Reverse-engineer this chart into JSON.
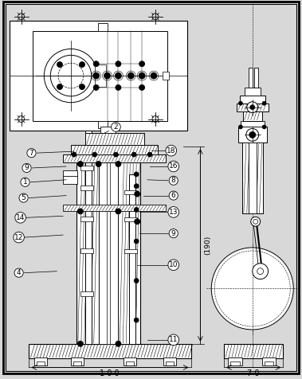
{
  "bg_color": "#d8d8d8",
  "white": "#ffffff",
  "black": "#000000",
  "fig_width": 3.79,
  "fig_height": 4.76,
  "dim_100": "1 0 0",
  "dim_70": "7 0",
  "dim_190": "(190)"
}
